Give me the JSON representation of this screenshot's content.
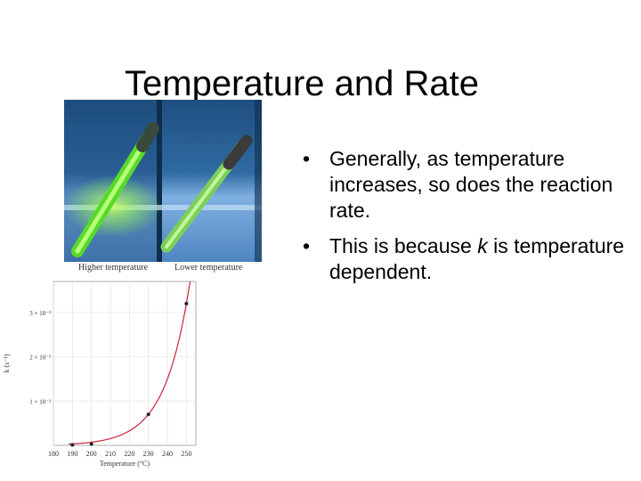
{
  "slide": {
    "title": "Temperature and Rate",
    "bullets": [
      {
        "marker": "•",
        "text": "Generally, as temperature increases, so does the reaction rate."
      },
      {
        "marker": "•",
        "text": "This is because k is temperature dependent."
      }
    ]
  },
  "photo": {
    "caption_left": "Higher temperature",
    "caption_right": "Lower temperature",
    "colors": {
      "water_top": "#2a5f93",
      "water_bottom": "#6fa3d6",
      "glow_left": "#7cff3a",
      "glow_right": "#9af27a"
    }
  },
  "chart_data": {
    "type": "line",
    "xlabel": "Temperature (°C)",
    "ylabel": "k (s⁻¹)",
    "xlim": [
      180,
      255
    ],
    "ylim": [
      0,
      3.7
    ],
    "x_ticks": [
      180,
      190,
      200,
      210,
      220,
      230,
      240,
      250
    ],
    "y_ticks": [
      {
        "value": 1,
        "label": "1 × 10⁻³"
      },
      {
        "value": 2,
        "label": "2 × 10⁻³"
      },
      {
        "value": 3,
        "label": "3 × 10⁻³"
      }
    ],
    "curve_color": "#d0213a",
    "points": [
      {
        "x": 190,
        "y": 0.01
      },
      {
        "x": 200,
        "y": 0.03
      },
      {
        "x": 230,
        "y": 0.7
      },
      {
        "x": 250,
        "y": 3.2
      }
    ],
    "grid": true
  }
}
